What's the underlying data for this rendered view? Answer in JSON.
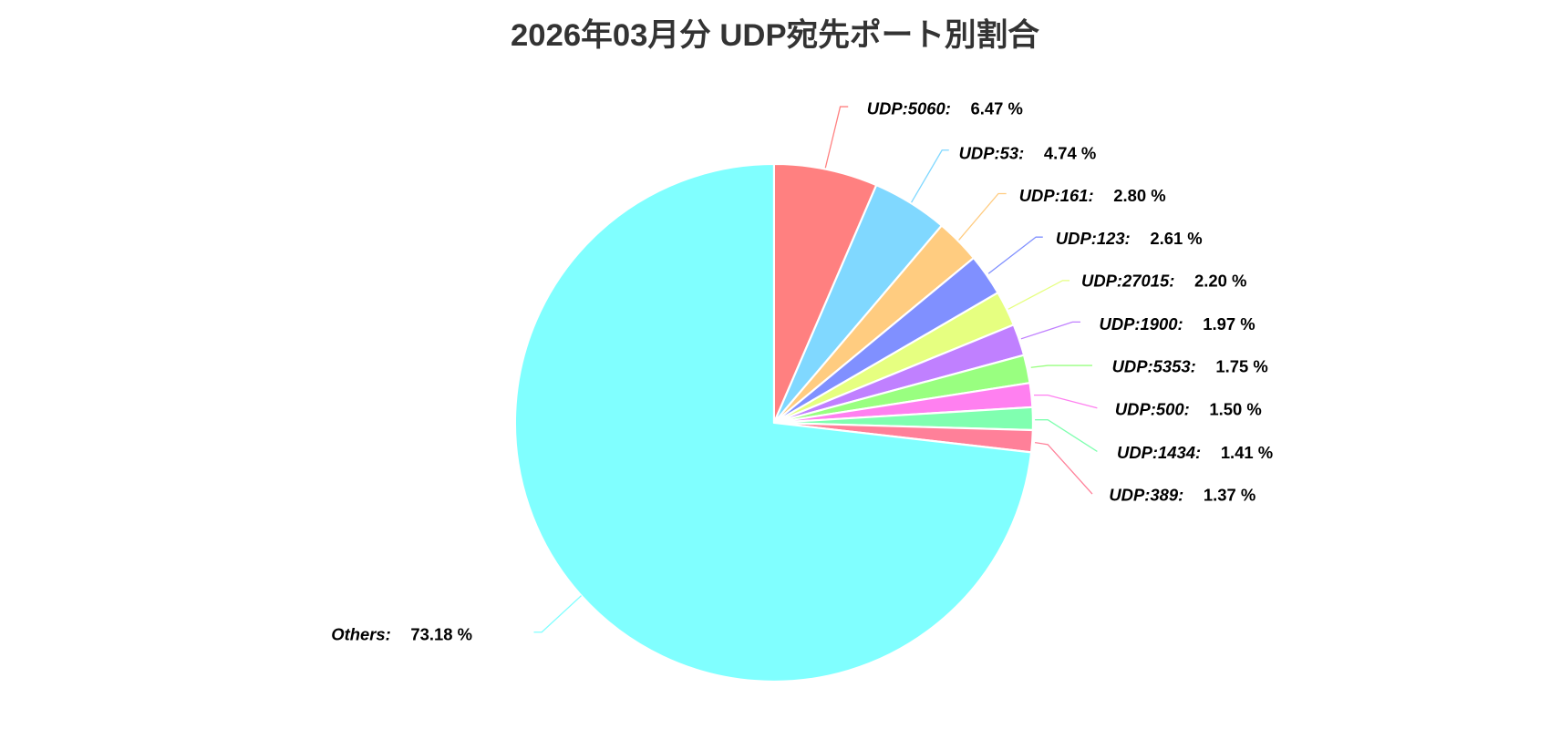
{
  "chart_data": {
    "type": "pie",
    "title": "2026年03月分 UDP宛先ポート別割合",
    "unit": "%",
    "start": "top, clockwise",
    "slices": [
      {
        "name": "UDP:5060",
        "value": 6.47,
        "color": "#FF8080"
      },
      {
        "name": "UDP:53",
        "value": 4.74,
        "color": "#80D8FF"
      },
      {
        "name": "UDP:161",
        "value": 2.8,
        "color": "#FFCC80"
      },
      {
        "name": "UDP:123",
        "value": 2.61,
        "color": "#8090FF"
      },
      {
        "name": "UDP:27015",
        "value": 2.2,
        "color": "#E6FF80"
      },
      {
        "name": "UDP:1900",
        "value": 1.97,
        "color": "#C080FF"
      },
      {
        "name": "UDP:5353",
        "value": 1.75,
        "color": "#99FF80"
      },
      {
        "name": "UDP:500",
        "value": 1.5,
        "color": "#FF80F0"
      },
      {
        "name": "UDP:1434",
        "value": 1.41,
        "color": "#80FFB0"
      },
      {
        "name": "UDP:389",
        "value": 1.37,
        "color": "#FF8099"
      },
      {
        "name": "Others",
        "value": 73.18,
        "color": "#80FFFF"
      }
    ]
  }
}
